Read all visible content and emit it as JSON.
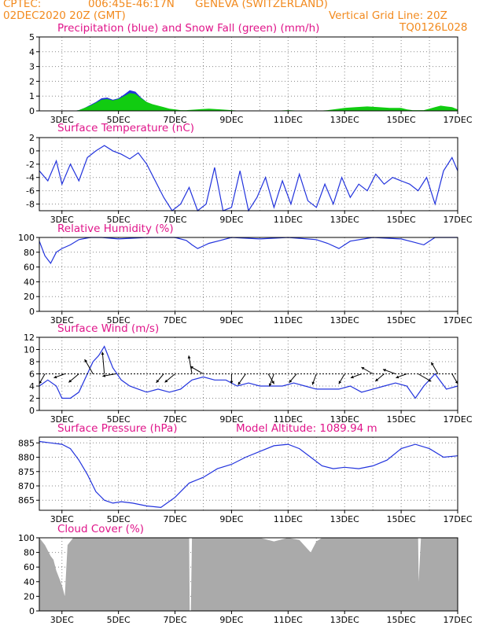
{
  "header": {
    "source": "CPTEC:",
    "coords": "006:45E-46:17N",
    "location": "GENEVA (SWITZERLAND)",
    "run": "02DEC2020 20Z (GMT)",
    "grid_note": "Vertical Grid Line: 20Z",
    "model": "TQ0126L028"
  },
  "panel_titles": {
    "precip": "Precipitation (blue) and Snow Fall (green) (mm/h)",
    "temp": "Surface Temperature (nC)",
    "rh": "Relative Humidity (%)",
    "wind": "Surface Wind (m/s)",
    "pressure": "Surface Pressure (hPa)",
    "altitude": "Model Altitude: 1089.94 m",
    "cloud": "Cloud Cover (%)"
  },
  "colors": {
    "header": "#f28a1e",
    "title": "#e0158a",
    "line": "#2233dd",
    "snow": "#11cc11",
    "precip": "#2233dd",
    "cloud": "#aaaaaa"
  },
  "chart_data": [
    {
      "type": "area",
      "id": "precip",
      "title": "Precipitation (blue) and Snow Fall (green) (mm/h)",
      "ylim": [
        0,
        5
      ],
      "yticks": [
        "0",
        "1",
        "2",
        "3",
        "4",
        "5"
      ],
      "x": [
        2.2,
        3.4,
        3.6,
        3.8,
        4.0,
        4.2,
        4.4,
        4.6,
        4.8,
        5.0,
        5.2,
        5.4,
        5.6,
        5.8,
        6.0,
        6.2,
        6.4,
        6.6,
        6.8,
        7.0,
        7.2,
        7.4,
        7.8,
        8.2,
        8.6,
        9.0,
        9.4,
        9.8,
        10.4,
        11.0,
        11.6,
        12.0,
        12.4,
        12.8,
        13.0,
        13.4,
        13.8,
        14.2,
        14.6,
        15.0,
        15.2,
        15.4,
        15.8,
        16.0,
        16.2,
        16.4,
        16.6,
        16.8,
        17.0
      ],
      "series": [
        {
          "name": "Precipitation",
          "values": [
            0,
            0,
            0.05,
            0.2,
            0.4,
            0.6,
            0.85,
            0.9,
            0.75,
            0.85,
            1.1,
            1.4,
            1.3,
            0.9,
            0.6,
            0.4,
            0.3,
            0.2,
            0.1,
            0.05,
            0,
            0,
            0.05,
            0.05,
            0,
            0,
            0,
            0,
            0,
            0,
            0,
            0,
            0,
            0,
            0.05,
            0.1,
            0.1,
            0.05,
            0.05,
            0.05,
            0,
            0,
            0,
            0,
            0,
            0.05,
            0.1,
            0.05,
            0
          ]
        },
        {
          "name": "Snow Fall",
          "values": [
            0,
            0,
            0.05,
            0.2,
            0.35,
            0.55,
            0.75,
            0.8,
            0.7,
            0.8,
            1.0,
            1.2,
            1.15,
            0.85,
            0.6,
            0.45,
            0.35,
            0.25,
            0.15,
            0.1,
            0.05,
            0.05,
            0.1,
            0.15,
            0.1,
            0.05,
            0,
            0,
            0,
            0.05,
            0,
            0,
            0.05,
            0.15,
            0.2,
            0.25,
            0.3,
            0.25,
            0.2,
            0.2,
            0.1,
            0.05,
            0.05,
            0.15,
            0.25,
            0.35,
            0.3,
            0.25,
            0.1
          ]
        }
      ]
    },
    {
      "type": "line",
      "id": "temp",
      "title": "Surface Temperature (nC)",
      "ylim": [
        -9,
        2
      ],
      "yticks": [
        "-8",
        "-6",
        "-4",
        "-2",
        "0",
        "2"
      ],
      "x": [
        2.2,
        2.5,
        2.8,
        3.0,
        3.3,
        3.6,
        3.9,
        4.2,
        4.5,
        4.8,
        5.1,
        5.4,
        5.7,
        6.0,
        6.3,
        6.6,
        6.9,
        7.2,
        7.5,
        7.8,
        8.1,
        8.4,
        8.7,
        9.0,
        9.3,
        9.6,
        9.9,
        10.2,
        10.5,
        10.8,
        11.1,
        11.4,
        11.7,
        12.0,
        12.3,
        12.6,
        12.9,
        13.2,
        13.5,
        13.8,
        14.1,
        14.4,
        14.7,
        15.0,
        15.3,
        15.6,
        15.9,
        16.2,
        16.5,
        16.8,
        17.0
      ],
      "values": [
        -3,
        -4.5,
        -1.5,
        -5,
        -2,
        -4.5,
        -1,
        0,
        0.8,
        0,
        -0.5,
        -1.2,
        -0.3,
        -2,
        -4.5,
        -7,
        -9,
        -8,
        -5.5,
        -9,
        -8,
        -2.5,
        -9,
        -8.5,
        -3,
        -9,
        -7,
        -4,
        -8.5,
        -4.5,
        -8,
        -3.5,
        -7.5,
        -8.5,
        -5,
        -8,
        -4,
        -7,
        -5,
        -6,
        -3.5,
        -5,
        -4,
        -4.5,
        -5,
        -6,
        -4,
        -8,
        -3,
        -1,
        -3
      ]
    },
    {
      "type": "line",
      "id": "rh",
      "title": "Relative Humidity (%)",
      "ylim": [
        0,
        100
      ],
      "yticks": [
        "0",
        "20",
        "40",
        "60",
        "80",
        "100"
      ],
      "x": [
        2.2,
        2.4,
        2.6,
        2.8,
        3.0,
        3.3,
        3.6,
        4.0,
        4.4,
        5.0,
        6.0,
        7.0,
        7.4,
        7.6,
        7.8,
        8.2,
        8.6,
        9.0,
        10.0,
        11.0,
        12.0,
        12.4,
        12.8,
        13.2,
        14.0,
        15.0,
        15.4,
        15.8,
        16.2,
        16.6,
        17.0
      ],
      "values": [
        95,
        75,
        65,
        80,
        85,
        90,
        97,
        100,
        100,
        98,
        100,
        100,
        96,
        90,
        85,
        92,
        96,
        100,
        98,
        100,
        97,
        92,
        85,
        95,
        100,
        98,
        94,
        90,
        100,
        100,
        100
      ]
    },
    {
      "type": "line",
      "id": "wind",
      "title": "Surface Wind (m/s)",
      "ylim": [
        0,
        12
      ],
      "yticks": [
        "0",
        "2",
        "4",
        "6",
        "8",
        "10",
        "12"
      ],
      "x": [
        2.2,
        2.5,
        2.8,
        3.0,
        3.3,
        3.6,
        3.9,
        4.1,
        4.3,
        4.5,
        4.8,
        5.1,
        5.4,
        5.7,
        6.0,
        6.4,
        6.8,
        7.2,
        7.6,
        8.0,
        8.4,
        8.8,
        9.2,
        9.6,
        10.0,
        10.4,
        10.8,
        11.2,
        11.6,
        12.0,
        12.4,
        12.8,
        13.2,
        13.6,
        14.0,
        14.4,
        14.8,
        15.2,
        15.5,
        15.8,
        16.2,
        16.6,
        17.0
      ],
      "values": [
        4,
        5,
        4,
        2,
        2,
        3,
        6,
        8,
        9,
        10.5,
        7,
        5,
        4,
        3.5,
        3,
        3.5,
        3,
        3.5,
        5,
        5.5,
        5,
        5,
        4,
        4.5,
        4,
        4,
        4,
        4.5,
        4,
        3.5,
        3.5,
        3.5,
        4,
        3,
        3.5,
        4,
        4.5,
        4,
        2,
        4,
        6,
        3.5,
        4
      ],
      "ref_line": 6
    },
    {
      "type": "line",
      "id": "pressure",
      "title": "Surface Pressure (hPa)",
      "ylim": [
        861.5,
        887
      ],
      "yticks": [
        "865",
        "870",
        "875",
        "880",
        "885"
      ],
      "x": [
        2.2,
        2.6,
        3.0,
        3.3,
        3.6,
        3.9,
        4.2,
        4.5,
        4.8,
        5.1,
        5.5,
        6.0,
        6.5,
        7.0,
        7.5,
        8.0,
        8.5,
        9.0,
        9.5,
        10.0,
        10.5,
        11.0,
        11.4,
        11.8,
        12.2,
        12.6,
        13.0,
        13.5,
        14.0,
        14.5,
        15.0,
        15.5,
        16.0,
        16.5,
        17.0
      ],
      "values": [
        885.5,
        885,
        884.5,
        883,
        879,
        874,
        868,
        865,
        864,
        864.5,
        864,
        863,
        862.5,
        866,
        871,
        873,
        876,
        877.5,
        880,
        882,
        884,
        884.5,
        883,
        880,
        877,
        876,
        876.5,
        876,
        877,
        879,
        883,
        884.5,
        883,
        880,
        880.5
      ]
    },
    {
      "type": "area",
      "id": "cloud",
      "title": "Cloud Cover (%)",
      "ylim": [
        0,
        100
      ],
      "yticks": [
        "0",
        "20",
        "40",
        "60",
        "80",
        "100"
      ],
      "x": [
        2.2,
        2.4,
        2.6,
        2.7,
        2.8,
        2.9,
        3.0,
        3.1,
        3.2,
        3.4,
        3.6,
        4.0,
        5.0,
        6.0,
        7.0,
        7.5,
        7.52,
        7.56,
        7.6,
        8.0,
        9.0,
        10.0,
        10.5,
        11.0,
        11.4,
        11.8,
        12.0,
        12.2,
        13.0,
        14.0,
        15.0,
        15.6,
        15.62,
        15.7,
        15.8,
        16.0,
        17.0
      ],
      "values": [
        100,
        90,
        75,
        70,
        55,
        45,
        35,
        20,
        90,
        100,
        100,
        100,
        100,
        100,
        100,
        100,
        0,
        0,
        100,
        100,
        100,
        100,
        95,
        100,
        97,
        80,
        95,
        100,
        100,
        100,
        100,
        100,
        40,
        100,
        100,
        100,
        100
      ]
    }
  ],
  "x_axis": {
    "ticks": [
      "3DEC",
      "5DEC",
      "7DEC",
      "9DEC",
      "11DEC",
      "13DEC",
      "15DEC",
      "17DEC"
    ]
  },
  "wind_arrows": [
    {
      "x": 2.4,
      "dir": 210,
      "mag": 4
    },
    {
      "x": 3.1,
      "dir": 250,
      "mag": 4
    },
    {
      "x": 3.6,
      "dir": 230,
      "mag": 5
    },
    {
      "x": 4.1,
      "dir": 330,
      "mag": 7
    },
    {
      "x": 4.5,
      "dir": 355,
      "mag": 10
    },
    {
      "x": 4.9,
      "dir": 260,
      "mag": 5
    },
    {
      "x": 6.6,
      "dir": 220,
      "mag": 4
    },
    {
      "x": 7.0,
      "dir": 230,
      "mag": 5
    },
    {
      "x": 7.6,
      "dir": 350,
      "mag": 8
    },
    {
      "x": 8.0,
      "dir": 300,
      "mag": 6
    },
    {
      "x": 9.0,
      "dir": 180,
      "mag": 3
    },
    {
      "x": 9.5,
      "dir": 215,
      "mag": 5
    },
    {
      "x": 10.3,
      "dir": 150,
      "mag": 4
    },
    {
      "x": 10.5,
      "dir": 200,
      "mag": 5
    },
    {
      "x": 11.3,
      "dir": 220,
      "mag": 4
    },
    {
      "x": 12.0,
      "dir": 200,
      "mag": 4
    },
    {
      "x": 13.0,
      "dir": 210,
      "mag": 4
    },
    {
      "x": 13.6,
      "dir": 250,
      "mag": 4
    },
    {
      "x": 14.0,
      "dir": 300,
      "mag": 5
    },
    {
      "x": 14.4,
      "dir": 230,
      "mag": 4
    },
    {
      "x": 14.8,
      "dir": 290,
      "mag": 5
    },
    {
      "x": 15.2,
      "dir": 250,
      "mag": 4
    },
    {
      "x": 15.6,
      "dir": 120,
      "mag": 6
    },
    {
      "x": 16.3,
      "dir": 330,
      "mag": 5
    },
    {
      "x": 16.8,
      "dir": 150,
      "mag": 4
    }
  ]
}
